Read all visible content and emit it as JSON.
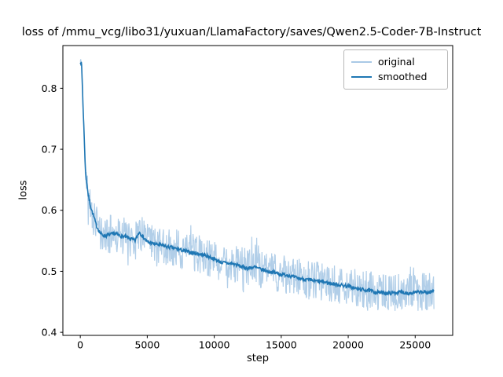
{
  "figure": {
    "background": "#ffffff"
  },
  "chart_data": {
    "type": "line",
    "title": "loss of /mmu_vcg/libo31/yuxuan/LlamaFactory/saves/Qwen2.5-Coder-7B-Instruct",
    "xlabel": "step",
    "ylabel": "loss",
    "xlim": [
      -1300,
      27800
    ],
    "ylim": [
      0.395,
      0.87
    ],
    "xticks": [
      0,
      5000,
      10000,
      15000,
      20000,
      25000
    ],
    "yticks": [
      0.4,
      0.5,
      0.6,
      0.7,
      0.8
    ],
    "grid": false,
    "legend": {
      "position": "upper right",
      "entries": [
        "original",
        "smoothed"
      ]
    },
    "noise_amplitude": 0.032,
    "series": [
      {
        "name": "original",
        "color": "#a9c9e6",
        "description": "raw per-step training loss; equals smoothed curve plus noise band of roughly +/-0.032"
      },
      {
        "name": "smoothed",
        "color": "#1f77b4",
        "points": [
          [
            0,
            0.845
          ],
          [
            100,
            0.838
          ],
          [
            200,
            0.775
          ],
          [
            300,
            0.715
          ],
          [
            400,
            0.66
          ],
          [
            600,
            0.624
          ],
          [
            800,
            0.604
          ],
          [
            1000,
            0.59
          ],
          [
            1200,
            0.575
          ],
          [
            1500,
            0.562
          ],
          [
            1800,
            0.558
          ],
          [
            2200,
            0.56
          ],
          [
            2600,
            0.562
          ],
          [
            3000,
            0.558
          ],
          [
            3400,
            0.556
          ],
          [
            3800,
            0.553
          ],
          [
            4100,
            0.55
          ],
          [
            4400,
            0.565
          ],
          [
            4700,
            0.556
          ],
          [
            5000,
            0.548
          ],
          [
            5500,
            0.545
          ],
          [
            6000,
            0.543
          ],
          [
            6500,
            0.54
          ],
          [
            7000,
            0.538
          ],
          [
            7500,
            0.535
          ],
          [
            8000,
            0.532
          ],
          [
            8500,
            0.53
          ],
          [
            9000,
            0.528
          ],
          [
            9500,
            0.525
          ],
          [
            10000,
            0.52
          ],
          [
            10500,
            0.515
          ],
          [
            11000,
            0.513
          ],
          [
            11500,
            0.512
          ],
          [
            12000,
            0.508
          ],
          [
            12500,
            0.505
          ],
          [
            13000,
            0.507
          ],
          [
            13500,
            0.503
          ],
          [
            14000,
            0.5
          ],
          [
            14500,
            0.498
          ],
          [
            15000,
            0.495
          ],
          [
            15500,
            0.494
          ],
          [
            16000,
            0.49
          ],
          [
            16500,
            0.488
          ],
          [
            17000,
            0.486
          ],
          [
            17500,
            0.484
          ],
          [
            18000,
            0.483
          ],
          [
            18500,
            0.481
          ],
          [
            19000,
            0.479
          ],
          [
            19500,
            0.477
          ],
          [
            20000,
            0.476
          ],
          [
            20500,
            0.472
          ],
          [
            21000,
            0.47
          ],
          [
            21500,
            0.469
          ],
          [
            22000,
            0.466
          ],
          [
            22500,
            0.465
          ],
          [
            23000,
            0.464
          ],
          [
            23500,
            0.465
          ],
          [
            24000,
            0.466
          ],
          [
            24500,
            0.464
          ],
          [
            25000,
            0.465
          ],
          [
            25500,
            0.466
          ],
          [
            26000,
            0.465
          ],
          [
            26400,
            0.468
          ]
        ]
      }
    ]
  }
}
